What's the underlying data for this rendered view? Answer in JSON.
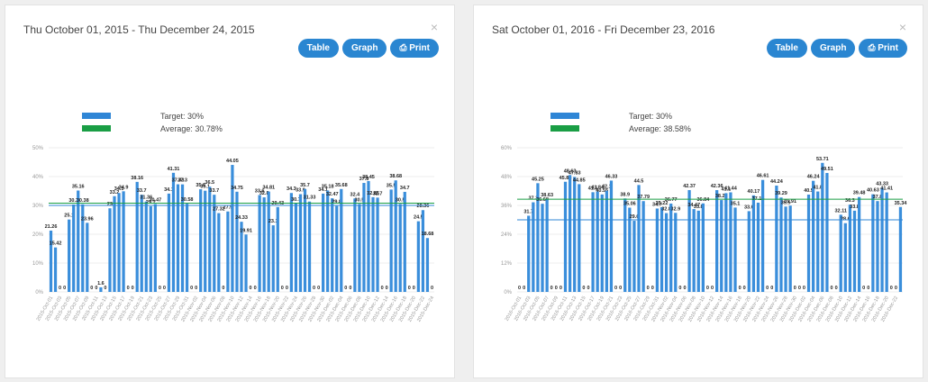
{
  "buttons": [
    "Table",
    "Graph",
    "Print"
  ],
  "close": "×",
  "chart_data": [
    {
      "type": "bar",
      "title": "Thu October 01, 2015 - Thu December 24, 2015",
      "color": "#3a8edb",
      "target": {
        "name": "Target: 30%",
        "value": 30,
        "color": "#2f86d6"
      },
      "average": {
        "name": "Average: 30.78%",
        "value": 30.78,
        "color": "#1a9e45"
      },
      "ylim": [
        0,
        50
      ],
      "yticks": [
        {
          "value": 0,
          "label": "0%"
        },
        {
          "value": 10,
          "label": "10%"
        },
        {
          "value": 20,
          "label": "20%"
        },
        {
          "value": 30,
          "label": "30%"
        },
        {
          "value": 40,
          "label": "40%"
        },
        {
          "value": 50,
          "label": "50%"
        }
      ],
      "grid": true,
      "categories": [
        "2015-Oct-01",
        null,
        "2015-Oct-03",
        null,
        "2015-Oct-05",
        null,
        "2015-Oct-07",
        null,
        "2015-Oct-09",
        null,
        "2015-Oct-11",
        null,
        "2015-Oct-13",
        null,
        "2015-Oct-15",
        null,
        "2015-Oct-17",
        null,
        "2015-Oct-19",
        null,
        "2015-Oct-21",
        null,
        "2015-Oct-23",
        null,
        "2015-Oct-25",
        null,
        "2015-Oct-27",
        null,
        "2015-Oct-29",
        null,
        "2015-Oct-31",
        null,
        "2015-Nov-02",
        null,
        "2015-Nov-04",
        null,
        "2015-Nov-06",
        null,
        "2015-Nov-08",
        null,
        "2015-Nov-10",
        null,
        "2015-Nov-12",
        null,
        "2015-Nov-14",
        null,
        "2015-Nov-16",
        null,
        "2015-Nov-18",
        null,
        "2015-Nov-20",
        null,
        "2015-Nov-22",
        null,
        "2015-Nov-24",
        null,
        "2015-Nov-26",
        null,
        "2015-Nov-28",
        null,
        "2015-Nov-30",
        null,
        "2015-Dec-02",
        null,
        "2015-Dec-04",
        null,
        "2015-Dec-06",
        null,
        "2015-Dec-08",
        null,
        "2015-Dec-10",
        null,
        "2015-Dec-12",
        null,
        "2015-Dec-14",
        null,
        "2015-Dec-16",
        null,
        "2015-Dec-18",
        null,
        "2015-Dec-20",
        null,
        "2015-Dec-22",
        null,
        "2015-Dec-24"
      ],
      "values": [
        21.26,
        15.42,
        0,
        0,
        25.1,
        30.3,
        35.16,
        30.38,
        23.96,
        0,
        0,
        1.6,
        0,
        29,
        33.2,
        34.3,
        34.9,
        0,
        0,
        38.16,
        33.7,
        31.36,
        29.7,
        30.47,
        0,
        0,
        34.1,
        41.31,
        37.33,
        37.3,
        30.58,
        0,
        0,
        35.6,
        35.1,
        36.5,
        33.7,
        27.32,
        0,
        27.9,
        44.05,
        34.75,
        24.33,
        19.91,
        0,
        0,
        33.6,
        32.8,
        34.81,
        23.1,
        29.43,
        0,
        0,
        34.3,
        30.7,
        33.9,
        35.7,
        31.33,
        0,
        0,
        34.1,
        35.18,
        32.47,
        29.8,
        35.68,
        0,
        0,
        32.4,
        30.5,
        37.8,
        38.45,
        32.85,
        32.7,
        0,
        0,
        35.5,
        38.68,
        30.5,
        34.7,
        0,
        0,
        24.5,
        28.36,
        18.68,
        0
      ]
    },
    {
      "type": "bar",
      "title": "Sat October 01, 2016 - Fri December 23, 2016",
      "color": "#3a8edb",
      "target": {
        "name": "Target: 30%",
        "value": 30,
        "color": "#2f86d6"
      },
      "average": {
        "name": "Average: 38.58%",
        "value": 38.58,
        "color": "#1a9e45"
      },
      "ylim": [
        0,
        60
      ],
      "yticks": [
        {
          "value": 0,
          "label": "0%"
        },
        {
          "value": 12,
          "label": "12%"
        },
        {
          "value": 24,
          "label": "24%"
        },
        {
          "value": 36,
          "label": "36%"
        },
        {
          "value": 48,
          "label": "48%"
        },
        {
          "value": 60,
          "label": "60%"
        }
      ],
      "grid": true,
      "categories": [
        "2016-Oct-01",
        null,
        "2016-Oct-03",
        null,
        "2016-Oct-05",
        null,
        "2016-Oct-07",
        null,
        "2016-Oct-09",
        null,
        "2016-Oct-11",
        null,
        "2016-Oct-13",
        null,
        "2016-Oct-15",
        null,
        "2016-Oct-17",
        null,
        "2016-Oct-19",
        null,
        "2016-Oct-21",
        null,
        "2016-Oct-23",
        null,
        "2016-Oct-25",
        null,
        "2016-Oct-27",
        null,
        "2016-Oct-29",
        null,
        "2016-Oct-31",
        null,
        "2016-Nov-02",
        null,
        "2016-Nov-04",
        null,
        "2016-Nov-06",
        null,
        "2016-Nov-08",
        null,
        "2016-Nov-10",
        null,
        "2016-Nov-12",
        null,
        "2016-Nov-14",
        null,
        "2016-Nov-16",
        null,
        "2016-Nov-18",
        null,
        "2016-Nov-20",
        null,
        "2016-Nov-22",
        null,
        "2016-Nov-24",
        null,
        "2016-Nov-26",
        null,
        "2016-Nov-28",
        null,
        "2016-Nov-30",
        null,
        "2016-Dec-02",
        null,
        "2016-Dec-04",
        null,
        "2016-Dec-06",
        null,
        "2016-Dec-08",
        null,
        "2016-Dec-10",
        null,
        "2016-Dec-12",
        null,
        "2016-Dec-14",
        null,
        "2016-Dec-16",
        null,
        "2016-Dec-18",
        null,
        "2016-Dec-20",
        null,
        "2016-Dec-22",
        null
      ],
      "values": [
        0,
        0,
        31.7,
        37.3,
        45.25,
        36.68,
        38.63,
        0,
        0,
        0,
        45.84,
        48.63,
        47.83,
        44.85,
        0,
        0,
        41.5,
        41.84,
        40.55,
        42.1,
        46.33,
        0,
        0,
        38.9,
        35.06,
        29.6,
        44.5,
        37.79,
        0,
        0,
        34.7,
        35.22,
        32.8,
        36.77,
        32.9,
        0,
        0,
        42.37,
        34.47,
        33.8,
        36.84,
        0,
        0,
        42.36,
        38.22,
        41.1,
        41.44,
        35.1,
        0,
        0,
        33.6,
        40.17,
        37.15,
        46.61,
        0,
        0,
        44.24,
        39.29,
        35.5,
        35.91,
        0,
        0,
        0,
        40.5,
        46.24,
        41.8,
        53.71,
        49.51,
        0,
        0,
        32.11,
        28.6,
        36.3,
        33.8,
        39.48,
        0,
        0,
        40.63,
        37.8,
        43.33,
        41.41,
        0,
        0,
        35.34
      ]
    }
  ]
}
